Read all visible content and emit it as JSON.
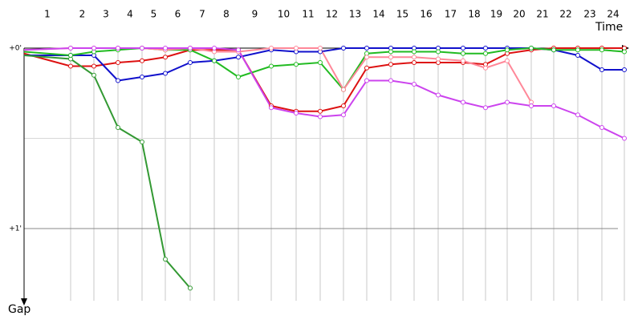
{
  "chart_data": {
    "type": "line",
    "x_label": "Time",
    "y_label": "Gap",
    "laps": [
      1,
      2,
      3,
      4,
      5,
      6,
      7,
      8,
      9,
      10,
      11,
      12,
      13,
      14,
      15,
      16,
      17,
      18,
      19,
      20,
      21,
      22,
      23,
      24
    ],
    "x": [
      0,
      58,
      87,
      117,
      147,
      176,
      207,
      237,
      267,
      308,
      339,
      369,
      398,
      427,
      457,
      486,
      516,
      547,
      575,
      602,
      632,
      660,
      690,
      720,
      748
    ],
    "xlim": [
      0,
      740
    ],
    "ylim": [
      0,
      1.4
    ],
    "yticks": [
      {
        "value": 0,
        "label": "+0'"
      },
      {
        "value": 1,
        "label": "+1'"
      }
    ],
    "minor_gridlines": [
      0.5
    ],
    "grid": true,
    "series": [
      {
        "color": "#dd1111",
        "values": [
          0.03,
          0.1,
          0.1,
          0.08,
          0.07,
          0.05,
          0.01,
          0.01,
          0.01,
          0.32,
          0.35,
          0.35,
          0.32,
          0.11,
          0.09,
          0.08,
          0.08,
          0.08,
          0.09,
          0.03,
          0.01,
          0.0,
          0,
          0,
          0.0
        ]
      },
      {
        "color": "#1111cc",
        "values": [
          0.04,
          0.04,
          0.04,
          0.18,
          0.16,
          0.14,
          0.08,
          0.07,
          0.05,
          0.01,
          0.02,
          0.02,
          0,
          0,
          0,
          0,
          0,
          0,
          0,
          0,
          0,
          0.01,
          0.04,
          0.12,
          0.12
        ]
      },
      {
        "color": "#339933",
        "values": [
          0.04,
          0.06,
          0.15,
          0.44,
          0.52,
          1.17,
          1.33,
          null,
          null,
          null,
          null,
          null,
          null,
          null,
          null,
          null,
          null,
          null,
          null,
          null,
          null,
          null,
          null,
          null,
          null
        ]
      },
      {
        "color": "#22bb22",
        "values": [
          0.02,
          0.04,
          0.02,
          0.01,
          0.0,
          0.01,
          0.01,
          0.07,
          0.16,
          0.1,
          0.09,
          0.08,
          0.23,
          0.03,
          0.02,
          0.02,
          0.02,
          0.03,
          0.03,
          0.01,
          0.0,
          0.01,
          0.01,
          0.01,
          0.02
        ]
      },
      {
        "color": "#ff8899",
        "values": [
          0.01,
          0.0,
          0.0,
          0,
          0,
          0.01,
          0.0,
          0.02,
          0.02,
          0.0,
          0.0,
          0.0,
          0.23,
          0.05,
          0.05,
          0.05,
          0.06,
          0.07,
          0.11,
          0.07,
          0.3,
          null,
          null,
          null,
          null
        ]
      },
      {
        "color": "#cc44ee",
        "values": [
          0.01,
          0,
          0,
          0,
          0,
          0,
          0,
          0.0,
          0.01,
          0.33,
          0.36,
          0.38,
          0.37,
          0.18,
          0.18,
          0.2,
          0.26,
          0.3,
          0.33,
          0.3,
          0.32,
          0.32,
          0.37,
          0.44,
          0.5
        ]
      }
    ]
  }
}
